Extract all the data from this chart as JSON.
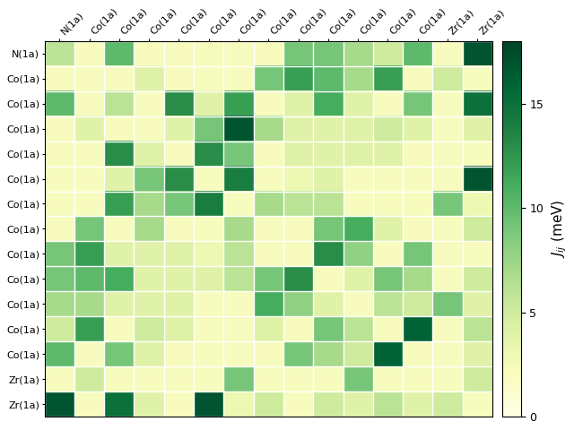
{
  "labels": [
    "N(1a)",
    "Co(1a)",
    "Co(1a)",
    "Co(1a)",
    "Co(1a)",
    "Co(1a)",
    "Co(1a)",
    "Co(1a)",
    "Co(1a)",
    "Co(1a)",
    "Co(1a)",
    "Co(1a)",
    "Co(1a)",
    "Zr(1a)",
    "Zr(1a)"
  ],
  "matrix": [
    [
      6,
      2,
      10,
      2,
      2,
      2,
      2,
      2,
      9,
      9,
      7,
      5,
      10,
      2,
      17
    ],
    [
      2,
      2,
      2,
      4,
      2,
      2,
      2,
      9,
      12,
      10,
      7,
      12,
      2,
      5,
      2
    ],
    [
      10,
      2,
      6,
      2,
      13,
      4,
      12,
      2,
      4,
      11,
      4,
      2,
      9,
      2,
      15
    ],
    [
      2,
      4,
      2,
      2,
      4,
      9,
      17,
      7,
      4,
      4,
      4,
      5,
      4,
      2,
      4
    ],
    [
      2,
      2,
      13,
      4,
      2,
      13,
      9,
      2,
      4,
      4,
      4,
      4,
      2,
      2,
      2
    ],
    [
      2,
      2,
      4,
      9,
      13,
      2,
      14,
      2,
      3,
      4,
      2,
      2,
      2,
      2,
      17
    ],
    [
      2,
      2,
      12,
      7,
      9,
      14,
      2,
      7,
      6,
      6,
      2,
      2,
      2,
      9,
      3
    ],
    [
      2,
      9,
      2,
      7,
      2,
      2,
      7,
      2,
      2,
      9,
      11,
      4,
      2,
      2,
      5
    ],
    [
      9,
      12,
      4,
      4,
      4,
      3,
      6,
      2,
      2,
      13,
      8,
      2,
      9,
      2,
      2
    ],
    [
      9,
      10,
      11,
      4,
      4,
      4,
      6,
      9,
      13,
      2,
      4,
      9,
      7,
      2,
      5
    ],
    [
      7,
      7,
      4,
      4,
      4,
      2,
      2,
      11,
      8,
      4,
      2,
      6,
      5,
      9,
      4
    ],
    [
      5,
      12,
      2,
      5,
      4,
      2,
      2,
      4,
      2,
      9,
      6,
      2,
      16,
      2,
      6
    ],
    [
      10,
      2,
      9,
      4,
      2,
      2,
      2,
      2,
      9,
      7,
      5,
      16,
      2,
      2,
      4
    ],
    [
      2,
      5,
      2,
      2,
      2,
      2,
      9,
      2,
      2,
      2,
      9,
      2,
      2,
      2,
      5
    ],
    [
      17,
      2,
      15,
      4,
      2,
      17,
      3,
      5,
      2,
      5,
      4,
      6,
      4,
      5,
      2
    ]
  ],
  "vmin": 0,
  "vmax": 18,
  "cmap": "YlGn",
  "colorbar_label": "$\\mathit{J}_{ij}$ (meV)",
  "colorbar_ticks": [
    0,
    5,
    10,
    15
  ],
  "tick_fontsize": 8,
  "cbar_fontsize": 11,
  "figsize": [
    6.4,
    4.8
  ],
  "dpi": 100
}
